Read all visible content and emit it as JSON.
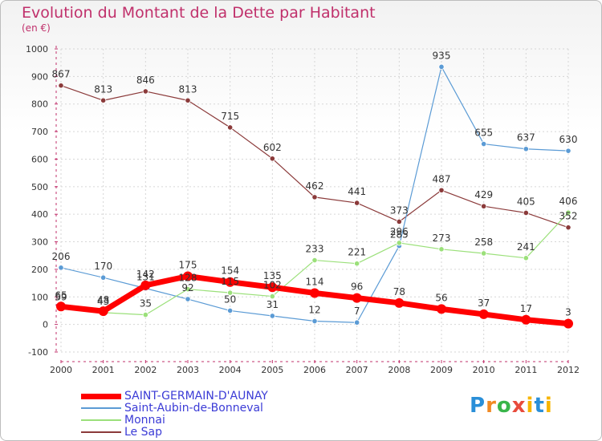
{
  "brand": "Proxiti",
  "chart_data": {
    "type": "line",
    "title": "Evolution du Montant de la Dette par Habitant",
    "subtitle": "(en €)",
    "xlabel": "",
    "ylabel": "",
    "ylim": [
      -100,
      1000
    ],
    "yticks": [
      -100,
      0,
      100,
      200,
      300,
      400,
      500,
      600,
      700,
      800,
      900,
      1000
    ],
    "categories": [
      "2000",
      "2001",
      "2002",
      "2003",
      "2004",
      "2005",
      "2006",
      "2007",
      "2008",
      "2009",
      "2010",
      "2011",
      "2012"
    ],
    "grid": true,
    "legend_position": "bottom-left",
    "series": [
      {
        "name": "Le Sap",
        "color": "#8b3a3a",
        "width": 1.2,
        "values": [
          867,
          813,
          846,
          813,
          715,
          602,
          462,
          441,
          373,
          487,
          429,
          405,
          352
        ]
      },
      {
        "name": "Saint-Aubin-de-Bonneval",
        "color": "#5b9bd5",
        "width": 1.2,
        "values": [
          206,
          170,
          131,
          92,
          50,
          31,
          12,
          7,
          285,
          935,
          655,
          637,
          630
        ]
      },
      {
        "name": "Monnai",
        "color": "#9be07a",
        "width": 1.2,
        "values": [
          59,
          43,
          35,
          128,
          115,
          102,
          233,
          221,
          296,
          273,
          258,
          241,
          406
        ]
      },
      {
        "name": "SAINT-GERMAIN-D'AUNAY",
        "color": "#ff0000",
        "width": 7,
        "values": [
          65,
          48,
          142,
          175,
          154,
          135,
          114,
          96,
          78,
          56,
          37,
          17,
          3
        ]
      }
    ],
    "legend_order": [
      "SAINT-GERMAIN-D'AUNAY",
      "Saint-Aubin-de-Bonneval",
      "Monnai",
      "Le Sap"
    ]
  }
}
